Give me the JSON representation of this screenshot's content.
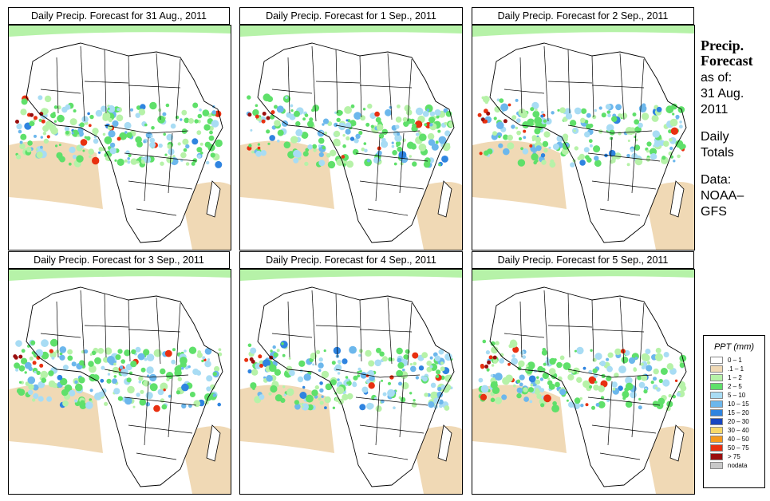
{
  "panels": [
    {
      "title": "Daily Precip. Forecast for  31 Aug., 2011",
      "swatch": "#6cb7ec"
    },
    {
      "title": "Daily Precip. Forecast for  1 Sep., 2011",
      "swatch": "#6cb7ec"
    },
    {
      "title": "Daily Precip. Forecast for  2 Sep., 2011",
      "swatch": "#6cb7ec"
    },
    {
      "title": "Daily Precip. Forecast for  3 Sep., 2011",
      "swatch": "#6cb7ec"
    },
    {
      "title": "Daily Precip. Forecast for  4 Sep., 2011",
      "swatch": "#6cb7ec"
    },
    {
      "title": "Daily Precip. Forecast for  5 Sep., 2011",
      "swatch": "#6cb7ec"
    }
  ],
  "side": {
    "heading1": "Precip.",
    "heading2": "Forecast",
    "asof": "as of:",
    "date1": "31 Aug.",
    "date2": "2011",
    "totals1": "Daily",
    "totals2": "Totals",
    "data1": "Data:",
    "data2": "NOAA–",
    "data3": "GFS"
  },
  "legend": {
    "title": "PPT (mm)",
    "items": [
      {
        "label": "0 – 1",
        "color": "#ffffff"
      },
      {
        "label": ".1 – 1",
        "color": "#f0d9b5"
      },
      {
        "label": "1 – 2",
        "color": "#b6f2a8"
      },
      {
        "label": "2 – 5",
        "color": "#5fe06a"
      },
      {
        "label": "5 – 10",
        "color": "#a8dcf4"
      },
      {
        "label": "10 – 15",
        "color": "#6cb7ec"
      },
      {
        "label": "15 – 20",
        "color": "#2f84e0"
      },
      {
        "label": "20 – 30",
        "color": "#1646c0"
      },
      {
        "label": "30 – 40",
        "color": "#f6d86a"
      },
      {
        "label": "40 – 50",
        "color": "#f59a1e"
      },
      {
        "label": "50 – 75",
        "color": "#e83010"
      },
      {
        "label": "> 75",
        "color": "#9a0e0e"
      },
      {
        "label": "nodata",
        "color": "#c8c8c8"
      }
    ]
  }
}
